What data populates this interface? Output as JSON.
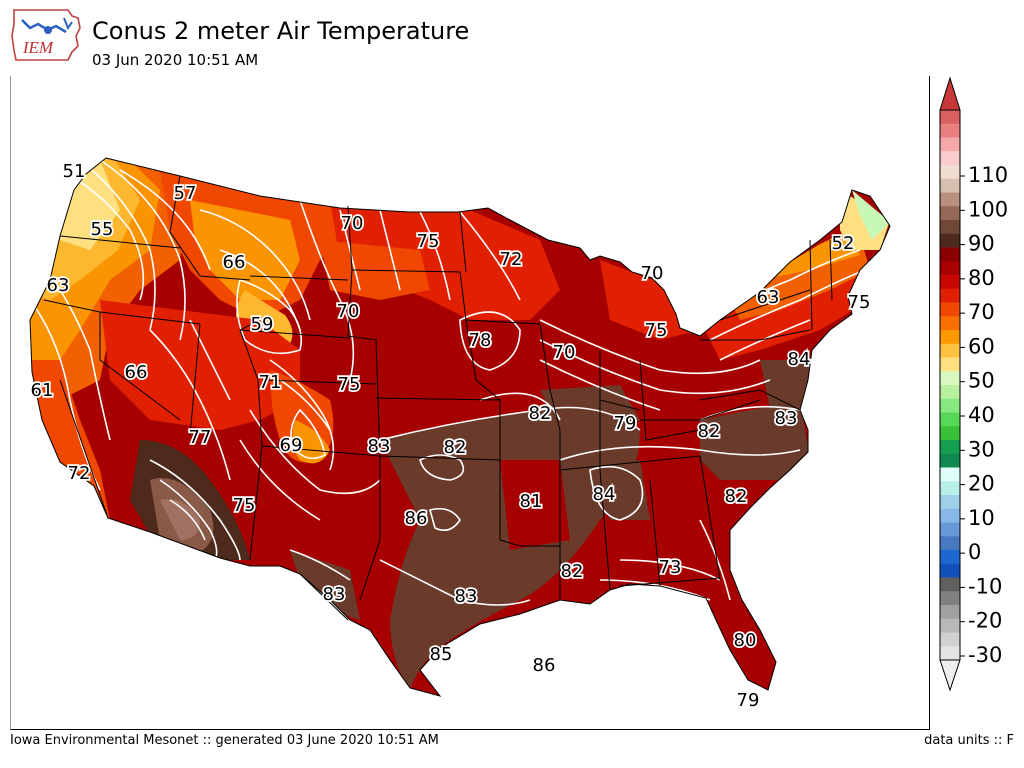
{
  "header": {
    "title": "Conus 2 meter Air Temperature",
    "subtitle": "03 Jun 2020 10:51 AM",
    "logo_text": "IEM"
  },
  "footer": {
    "left": "Iowa Environmental Mesonet :: generated 03 June 2020 10:51 AM",
    "right": "data units :: F"
  },
  "colorbar": {
    "ticks": [
      "110",
      "100",
      "90",
      "80",
      "70",
      "60",
      "50",
      "40",
      "30",
      "20",
      "10",
      "0",
      "-10",
      "-20",
      "-30"
    ],
    "colors_top_to_bottom": [
      "#d96060",
      "#e88080",
      "#f5a8a8",
      "#f8cccc",
      "#f0dcd0",
      "#d8c0b0",
      "#b89080",
      "#946858",
      "#704838",
      "#4e2a1c",
      "#8a0000",
      "#a80000",
      "#c80800",
      "#e02000",
      "#f04800",
      "#f87000",
      "#fc9800",
      "#fec040",
      "#fee080",
      "#d8f8c0",
      "#b8f0a0",
      "#88e880",
      "#58d858",
      "#38c038",
      "#14a050",
      "#108850",
      "#e0fff8",
      "#b8f0e8",
      "#a0d0e8",
      "#88b8e8",
      "#6898d8",
      "#4878c0",
      "#1c68d0",
      "#1050b8",
      "#606060",
      "#808080",
      "#a0a0a0",
      "#b8b8b8",
      "#d0d0d0",
      "#e4e4e4"
    ],
    "extend_top_color": "#c83838",
    "extend_bottom_color": "#eeeeee"
  },
  "map": {
    "region": "CONUS",
    "station_labels": [
      {
        "value": "51"
      },
      {
        "value": "57"
      },
      {
        "value": "55"
      },
      {
        "value": "70"
      },
      {
        "value": "75"
      },
      {
        "value": "72"
      },
      {
        "value": "52"
      },
      {
        "value": "66"
      },
      {
        "value": "63"
      },
      {
        "value": "70"
      },
      {
        "value": "59"
      },
      {
        "value": "70"
      },
      {
        "value": "63"
      },
      {
        "value": "75"
      },
      {
        "value": "78"
      },
      {
        "value": "70"
      },
      {
        "value": "75"
      },
      {
        "value": "66"
      },
      {
        "value": "84"
      },
      {
        "value": "61"
      },
      {
        "value": "71"
      },
      {
        "value": "75"
      },
      {
        "value": "82"
      },
      {
        "value": "79"
      },
      {
        "value": "83"
      },
      {
        "value": "77"
      },
      {
        "value": "69"
      },
      {
        "value": "83"
      },
      {
        "value": "82"
      },
      {
        "value": "82"
      },
      {
        "value": "72"
      },
      {
        "value": "84"
      },
      {
        "value": "82"
      },
      {
        "value": "75"
      },
      {
        "value": "81"
      },
      {
        "value": "86"
      },
      {
        "value": "73"
      },
      {
        "value": "82"
      },
      {
        "value": "83"
      },
      {
        "value": "83"
      },
      {
        "value": "80"
      },
      {
        "value": "85"
      },
      {
        "value": "86"
      },
      {
        "value": "79"
      }
    ]
  }
}
